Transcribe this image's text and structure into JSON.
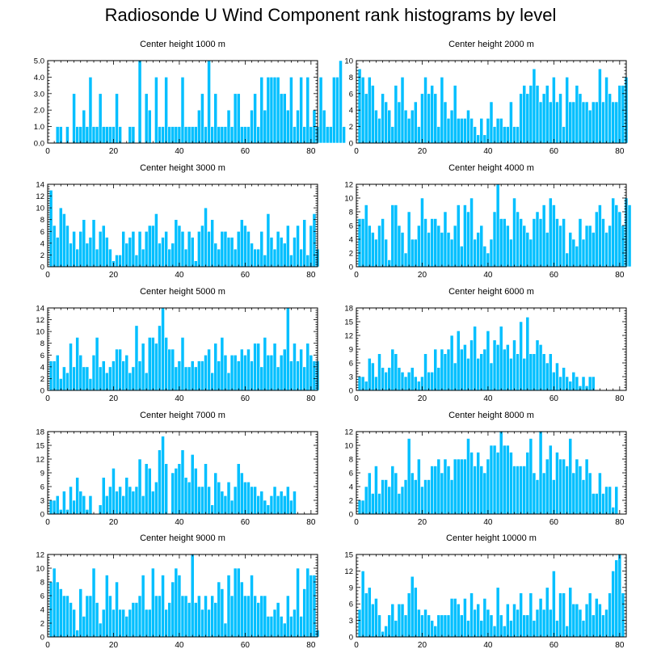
{
  "title": "Radiosonde U Wind Component rank histograms by level",
  "colors": {
    "bar": "#00bfff",
    "bar_stroke": "#ffffff",
    "axis": "#000000"
  },
  "chart_data": [
    {
      "type": "bar",
      "title": "Center height 1000 m",
      "xlim": [
        0,
        82
      ],
      "ylim": [
        0,
        5
      ],
      "xticks": [
        0,
        20,
        40,
        60,
        80
      ],
      "yticks": [
        0,
        1,
        2,
        3,
        4,
        5
      ],
      "ytick_labels": [
        "0.0",
        "1.0",
        "2.0",
        "3.0",
        "4.0",
        "5.0"
      ],
      "values": [
        0,
        0,
        1,
        1,
        0,
        1,
        0,
        3,
        1,
        1,
        2,
        1,
        4,
        1,
        1,
        3,
        1,
        1,
        1,
        1,
        3,
        1,
        0,
        0,
        1,
        1,
        0,
        5,
        0,
        3,
        2,
        0,
        4,
        1,
        1,
        4,
        1,
        1,
        1,
        1,
        4,
        1,
        1,
        1,
        1,
        2,
        3,
        1,
        5,
        1,
        3,
        1,
        1,
        1,
        2,
        1,
        3,
        3,
        1,
        1,
        1,
        2,
        3,
        1,
        4,
        2,
        4,
        4,
        4,
        4,
        3,
        3,
        2,
        4,
        1,
        2,
        4,
        1,
        4,
        1,
        2,
        1,
        4,
        2,
        1,
        1,
        4,
        4,
        5,
        1
      ]
    },
    {
      "type": "bar",
      "title": "Center height 2000 m",
      "xlim": [
        0,
        82
      ],
      "ylim": [
        0,
        10
      ],
      "xticks": [
        0,
        20,
        40,
        60,
        80
      ],
      "yticks": [
        0,
        2,
        4,
        6,
        8,
        10
      ],
      "values": [
        9,
        8,
        6,
        8,
        7,
        4,
        3,
        6,
        5,
        4,
        2,
        7,
        5,
        8,
        4,
        3,
        4,
        5,
        2,
        6,
        8,
        6,
        7,
        6,
        2,
        8,
        5,
        3,
        4,
        7,
        3,
        3,
        3,
        4,
        3,
        2,
        1,
        3,
        1,
        3,
        5,
        2,
        3,
        3,
        2,
        2,
        5,
        2,
        2,
        6,
        7,
        6,
        7,
        9,
        7,
        5,
        6,
        7,
        5,
        8,
        5,
        6,
        2,
        8,
        5,
        5,
        7,
        6,
        5,
        5,
        4,
        5,
        5,
        9,
        5,
        8,
        6,
        5,
        5,
        7,
        7,
        8
      ]
    },
    {
      "type": "bar",
      "title": "Center height 3000 m",
      "xlim": [
        0,
        82
      ],
      "ylim": [
        0,
        14
      ],
      "xticks": [
        0,
        20,
        40,
        60,
        80
      ],
      "yticks": [
        0,
        2,
        4,
        6,
        8,
        10,
        12,
        14
      ],
      "values": [
        13,
        7,
        5,
        10,
        9,
        7,
        4,
        6,
        3,
        6,
        8,
        4,
        5,
        8,
        3,
        6,
        7,
        5,
        3,
        1,
        2,
        2,
        6,
        4,
        5,
        6,
        2,
        6,
        3,
        6,
        7,
        7,
        9,
        4,
        5,
        6,
        3,
        4,
        8,
        7,
        6,
        3,
        6,
        5,
        1,
        6,
        7,
        10,
        6,
        8,
        4,
        3,
        6,
        6,
        5,
        5,
        3,
        6,
        8,
        7,
        6,
        4,
        3,
        3,
        6,
        2,
        9,
        5,
        3,
        6,
        5,
        4,
        7,
        2,
        5,
        7,
        3,
        8,
        2,
        7,
        9,
        3
      ]
    },
    {
      "type": "bar",
      "title": "Center height 4000 m",
      "xlim": [
        0,
        82
      ],
      "ylim": [
        0,
        12
      ],
      "xticks": [
        0,
        20,
        40,
        60,
        80
      ],
      "yticks": [
        0,
        2,
        4,
        6,
        8,
        10,
        12
      ],
      "values": [
        7,
        7,
        9,
        6,
        5,
        4,
        6,
        7,
        4,
        1,
        9,
        9,
        6,
        5,
        2,
        8,
        4,
        4,
        6,
        10,
        7,
        5,
        7,
        7,
        6,
        5,
        8,
        5,
        4,
        6,
        9,
        3,
        9,
        8,
        10,
        4,
        5,
        6,
        3,
        2,
        4,
        8,
        12,
        7,
        7,
        6,
        4,
        10,
        8,
        7,
        6,
        5,
        4,
        7,
        8,
        7,
        9,
        5,
        10,
        9,
        7,
        6,
        7,
        2,
        5,
        4,
        3,
        7,
        4,
        6,
        6,
        5,
        8,
        9,
        7,
        5,
        6,
        10,
        9,
        8,
        6,
        10,
        9
      ]
    },
    {
      "type": "bar",
      "title": "Center height 5000 m",
      "xlim": [
        0,
        82
      ],
      "ylim": [
        0,
        14
      ],
      "xticks": [
        0,
        20,
        40,
        60,
        80
      ],
      "yticks": [
        0,
        2,
        4,
        6,
        8,
        10,
        12,
        14
      ],
      "values": [
        5,
        5,
        6,
        2,
        4,
        3,
        8,
        4,
        9,
        6,
        4,
        4,
        2,
        6,
        9,
        4,
        5,
        3,
        4,
        5,
        7,
        7,
        5,
        6,
        3,
        4,
        11,
        5,
        8,
        3,
        9,
        9,
        8,
        11,
        14,
        9,
        7,
        7,
        4,
        5,
        9,
        4,
        4,
        5,
        4,
        5,
        5,
        6,
        7,
        3,
        8,
        5,
        9,
        6,
        3,
        6,
        6,
        5,
        7,
        6,
        7,
        5,
        8,
        8,
        4,
        9,
        6,
        6,
        8,
        4,
        6,
        7,
        14,
        5,
        8,
        5,
        7,
        4,
        8,
        6,
        5,
        5
      ]
    },
    {
      "type": "bar",
      "title": "Center height 6000 m",
      "xlim": [
        0,
        82
      ],
      "ylim": [
        0,
        18
      ],
      "xticks": [
        0,
        20,
        40,
        60,
        80
      ],
      "yticks": [
        0,
        3,
        6,
        9,
        12,
        15,
        18
      ],
      "values": [
        3,
        3,
        2,
        7,
        6,
        3,
        8,
        5,
        4,
        5,
        9,
        8,
        5,
        4,
        3,
        4,
        5,
        3,
        2,
        3,
        8,
        4,
        4,
        9,
        5,
        9,
        8,
        9,
        12,
        6,
        13,
        9,
        10,
        7,
        11,
        14,
        7,
        8,
        9,
        13,
        6,
        11,
        10,
        14,
        9,
        10,
        7,
        11,
        8,
        15,
        7,
        16,
        8,
        8,
        11,
        10,
        8,
        6,
        8,
        4,
        6,
        3,
        5,
        3,
        2,
        4,
        3,
        1,
        3,
        1,
        3,
        3
      ]
    },
    {
      "type": "bar",
      "title": "Center height 7000 m",
      "xlim": [
        0,
        82
      ],
      "ylim": [
        0,
        18
      ],
      "xticks": [
        0,
        20,
        40,
        60,
        80
      ],
      "yticks": [
        0,
        3,
        6,
        9,
        12,
        15,
        18
      ],
      "values": [
        3,
        3,
        4,
        1,
        5,
        1,
        6,
        3,
        8,
        5,
        4,
        1,
        4,
        0,
        0,
        2,
        8,
        4,
        6,
        10,
        5,
        6,
        4,
        8,
        6,
        5,
        6,
        12,
        4,
        11,
        10,
        5,
        7,
        14,
        17,
        11,
        0,
        9,
        10,
        11,
        14,
        8,
        7,
        13,
        10,
        6,
        6,
        11,
        6,
        2,
        9,
        7,
        5,
        4,
        7,
        3,
        6,
        11,
        9,
        7,
        7,
        6,
        6,
        4,
        5,
        3,
        2,
        4,
        6,
        4,
        5,
        4,
        6,
        3,
        5,
        0,
        0,
        0,
        0,
        0,
        0,
        0
      ]
    },
    {
      "type": "bar",
      "title": "Center height 8000 m",
      "xlim": [
        0,
        82
      ],
      "ylim": [
        0,
        12
      ],
      "xticks": [
        0,
        20,
        40,
        60,
        80
      ],
      "yticks": [
        0,
        2,
        4,
        6,
        8,
        10,
        12
      ],
      "values": [
        2,
        2,
        4,
        6,
        3,
        7,
        3,
        5,
        5,
        4,
        7,
        6,
        3,
        4,
        5,
        11,
        6,
        5,
        8,
        4,
        5,
        5,
        7,
        7,
        8,
        6,
        8,
        7,
        5,
        8,
        8,
        8,
        8,
        11,
        9,
        7,
        9,
        7,
        6,
        8,
        10,
        10,
        9,
        12,
        10,
        10,
        9,
        7,
        7,
        7,
        7,
        9,
        11,
        6,
        5,
        12,
        6,
        8,
        10,
        5,
        9,
        8,
        8,
        7,
        11,
        6,
        8,
        7,
        5,
        8,
        6,
        3,
        3,
        6,
        3,
        4,
        4,
        1,
        4
      ]
    },
    {
      "type": "bar",
      "title": "Center height 9000 m",
      "xlim": [
        0,
        82
      ],
      "ylim": [
        0,
        12
      ],
      "xticks": [
        0,
        20,
        40,
        60,
        80
      ],
      "yticks": [
        0,
        2,
        4,
        6,
        8,
        10,
        12
      ],
      "values": [
        8,
        10,
        8,
        7,
        6,
        6,
        5,
        4,
        1,
        7,
        3,
        6,
        6,
        10,
        5,
        2,
        4,
        9,
        6,
        4,
        8,
        4,
        4,
        3,
        4,
        5,
        5,
        6,
        9,
        4,
        4,
        10,
        6,
        6,
        9,
        4,
        5,
        8,
        10,
        9,
        6,
        6,
        5,
        12,
        5,
        6,
        4,
        6,
        4,
        6,
        5,
        8,
        7,
        2,
        9,
        6,
        10,
        10,
        8,
        6,
        6,
        9,
        6,
        5,
        6,
        6,
        3,
        3,
        4,
        5,
        3,
        2,
        6,
        3,
        4,
        10,
        3,
        7,
        10,
        9,
        9,
        1
      ]
    },
    {
      "type": "bar",
      "title": "Center height 10000 m",
      "xlim": [
        0,
        82
      ],
      "ylim": [
        0,
        15
      ],
      "xticks": [
        0,
        20,
        40,
        60,
        80
      ],
      "yticks": [
        0,
        3,
        6,
        9,
        12,
        15
      ],
      "values": [
        5,
        12,
        8,
        9,
        6,
        7,
        4,
        1,
        2,
        4,
        6,
        3,
        6,
        6,
        4,
        8,
        11,
        9,
        5,
        4,
        5,
        4,
        3,
        2,
        4,
        4,
        4,
        4,
        7,
        7,
        6,
        4,
        7,
        3,
        8,
        5,
        6,
        3,
        7,
        5,
        4,
        2,
        9,
        4,
        2,
        6,
        3,
        6,
        5,
        8,
        4,
        4,
        8,
        3,
        5,
        7,
        5,
        9,
        5,
        12,
        3,
        8,
        8,
        2,
        9,
        6,
        6,
        5,
        3,
        6,
        8,
        4,
        7,
        6,
        4,
        5,
        8,
        12,
        14,
        15,
        8
      ]
    }
  ]
}
